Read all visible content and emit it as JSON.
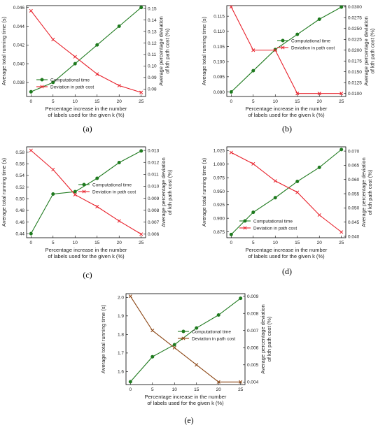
{
  "chart_data": [
    {
      "panel": "(a)",
      "type": "line",
      "x": [
        0,
        5,
        10,
        15,
        20,
        25
      ],
      "xlabel_lines": [
        "Percentage increase in the number",
        "of labels used for the given k (%)"
      ],
      "ylabel_left": "Average total running time (s)",
      "ylabel_right_lines": [
        "Average percentage deviation",
        "of kth path cost (%)"
      ],
      "yleft": {
        "min": 0.0365,
        "max": 0.0462,
        "ticks": [
          0.038,
          0.04,
          0.042,
          0.044,
          0.046
        ],
        "labels": [
          "0.038",
          "0.040",
          "0.042",
          "0.044",
          "0.046"
        ]
      },
      "yright": {
        "min": 0.0735,
        "max": 0.1525,
        "ticks": [
          0.08,
          0.09,
          0.1,
          0.11,
          0.12,
          0.13,
          0.14,
          0.15
        ],
        "labels": [
          "0.08",
          "0.09",
          "0.10",
          "0.11",
          "0.12",
          "0.13",
          "0.14",
          "0.15"
        ]
      },
      "legend_pos": "bottom-left",
      "series": [
        {
          "name": "Computational time",
          "axis": "left",
          "color": "#1f7a1f",
          "marker": "circle",
          "values": [
            0.037,
            0.038,
            0.04,
            0.042,
            0.044,
            0.046
          ]
        },
        {
          "name": "Deviation in path cost",
          "axis": "right",
          "color": "#e8202a",
          "marker": "x",
          "values": [
            0.148,
            0.123,
            0.108,
            0.093,
            0.083,
            0.077
          ]
        }
      ]
    },
    {
      "panel": "(b)",
      "type": "line",
      "x": [
        0,
        5,
        10,
        15,
        20,
        25
      ],
      "xlabel_lines": [
        "Percentage increase in the number",
        "of labels used for the given k (%)"
      ],
      "ylabel_left": "Average total running time (s)",
      "ylabel_right_lines": [
        "Average percentage deviation",
        "of kth path cost (%)"
      ],
      "yleft": {
        "min": 0.0885,
        "max": 0.1185,
        "ticks": [
          0.09,
          0.095,
          0.1,
          0.105,
          0.11,
          0.115
        ],
        "labels": [
          "0.090",
          "0.095",
          "0.100",
          "0.105",
          "0.110",
          "0.115"
        ]
      },
      "yright": {
        "min": 0.0093,
        "max": 0.0303,
        "ticks": [
          0.01,
          0.0125,
          0.015,
          0.0175,
          0.02,
          0.0225,
          0.025,
          0.0275,
          0.03
        ],
        "labels": [
          "0.0100",
          "0.0125",
          "0.0150",
          "0.0175",
          "0.0200",
          "0.0225",
          "0.0250",
          "0.0275",
          "0.0300"
        ]
      },
      "legend_pos": "top-right",
      "series": [
        {
          "name": "Computational time",
          "axis": "left",
          "color": "#1f7a1f",
          "marker": "circle",
          "values": [
            0.09,
            0.097,
            0.104,
            0.109,
            0.114,
            0.118
          ]
        },
        {
          "name": "Deviation in path cost",
          "axis": "right",
          "color": "#e8202a",
          "marker": "x",
          "values": [
            0.03,
            0.02,
            0.02,
            0.01,
            0.01,
            0.01
          ]
        }
      ]
    },
    {
      "panel": "(c)",
      "type": "line",
      "x": [
        0,
        5,
        10,
        15,
        20,
        25
      ],
      "xlabel_lines": [
        "Percentage increase in the number",
        "of labels used for the given k (%)"
      ],
      "ylabel_left": "Average total running time (s)",
      "ylabel_right_lines": [
        "Average percentage deviation",
        "of kth path cost (%)"
      ],
      "yleft": {
        "min": 0.433,
        "max": 0.589,
        "ticks": [
          0.44,
          0.46,
          0.48,
          0.5,
          0.52,
          0.54,
          0.56,
          0.58
        ],
        "labels": [
          "0.44",
          "0.46",
          "0.48",
          "0.50",
          "0.52",
          "0.54",
          "0.56",
          "0.58"
        ]
      },
      "yright": {
        "min": 0.0057,
        "max": 0.0133,
        "ticks": [
          0.006,
          0.007,
          0.008,
          0.009,
          0.01,
          0.011,
          0.012,
          0.013
        ],
        "labels": [
          "0.006",
          "0.007",
          "0.008",
          "0.009",
          "0.010",
          "0.011",
          "0.012",
          "0.013"
        ]
      },
      "legend_pos": "center-right",
      "series": [
        {
          "name": "Computational time",
          "axis": "left",
          "color": "#1f7a1f",
          "marker": "circle",
          "values": [
            0.44,
            0.508,
            0.512,
            0.535,
            0.562,
            0.582
          ]
        },
        {
          "name": "Deviation in path cost",
          "axis": "right",
          "color": "#e8202a",
          "marker": "x",
          "values": [
            0.013,
            0.0114,
            0.0093,
            0.0083,
            0.0071,
            0.006
          ]
        }
      ]
    },
    {
      "panel": "(d)",
      "type": "line",
      "x": [
        0,
        5,
        10,
        15,
        20,
        25
      ],
      "xlabel_lines": [
        "Percentage increase in the number",
        "of labels used for the given k (%)"
      ],
      "ylabel_left": "Average total running time (s)",
      "ylabel_right_lines": [
        "Average percentage deviation",
        "of kth path cost (%)"
      ],
      "yleft": {
        "min": 0.864,
        "max": 1.032,
        "ticks": [
          0.875,
          0.9,
          0.925,
          0.95,
          0.975,
          1.0,
          1.025
        ],
        "labels": [
          "0.875",
          "0.900",
          "0.925",
          "0.950",
          "0.975",
          "1.000",
          "1.025"
        ]
      },
      "yright": {
        "min": 0.0395,
        "max": 0.0715,
        "ticks": [
          0.04,
          0.045,
          0.05,
          0.055,
          0.06,
          0.065,
          0.07
        ],
        "labels": [
          "0.040",
          "0.045",
          "0.050",
          "0.055",
          "0.060",
          "0.065",
          "0.070"
        ]
      },
      "legend_pos": "bottom-center",
      "series": [
        {
          "name": "Computational time",
          "axis": "left",
          "color": "#1f7a1f",
          "marker": "circle",
          "values": [
            0.87,
            0.911,
            0.938,
            0.968,
            0.994,
            1.027
          ]
        },
        {
          "name": "Deviation in path cost",
          "axis": "right",
          "color": "#e8202a",
          "marker": "x",
          "values": [
            0.0695,
            0.0655,
            0.0595,
            0.0555,
            0.0475,
            0.0415
          ]
        }
      ]
    },
    {
      "panel": "(e)",
      "type": "line",
      "x": [
        0,
        5,
        10,
        15,
        20,
        25
      ],
      "xlabel_lines": [
        "Percentage increase in the number",
        "of labels used for the given k (%)"
      ],
      "ylabel_left": "Average total running time (s)",
      "ylabel_right_lines": [
        "Average percentage deviation",
        "of kth path cost (%)"
      ],
      "yleft": {
        "min": 1.53,
        "max": 2.02,
        "ticks": [
          1.6,
          1.7,
          1.8,
          1.9,
          2.0
        ],
        "labels": [
          "1.6",
          "1.7",
          "1.8",
          "1.9",
          "2.0"
        ]
      },
      "yright": {
        "min": 0.00385,
        "max": 0.00915,
        "ticks": [
          0.004,
          0.005,
          0.006,
          0.007,
          0.008,
          0.009
        ],
        "labels": [
          "0.004",
          "0.005",
          "0.006",
          "0.007",
          "0.008",
          "0.009"
        ]
      },
      "legend_pos": "center-right",
      "series": [
        {
          "name": "Computational time",
          "axis": "left",
          "color": "#1f7a1f",
          "marker": "circle",
          "values": [
            1.545,
            1.68,
            1.745,
            1.835,
            1.905,
            1.995
          ]
        },
        {
          "name": "Deviation in path cost",
          "axis": "right",
          "color": "#8b4513",
          "marker": "x",
          "values": [
            0.009,
            0.007,
            0.006,
            0.005,
            0.004,
            0.004
          ]
        }
      ]
    }
  ]
}
